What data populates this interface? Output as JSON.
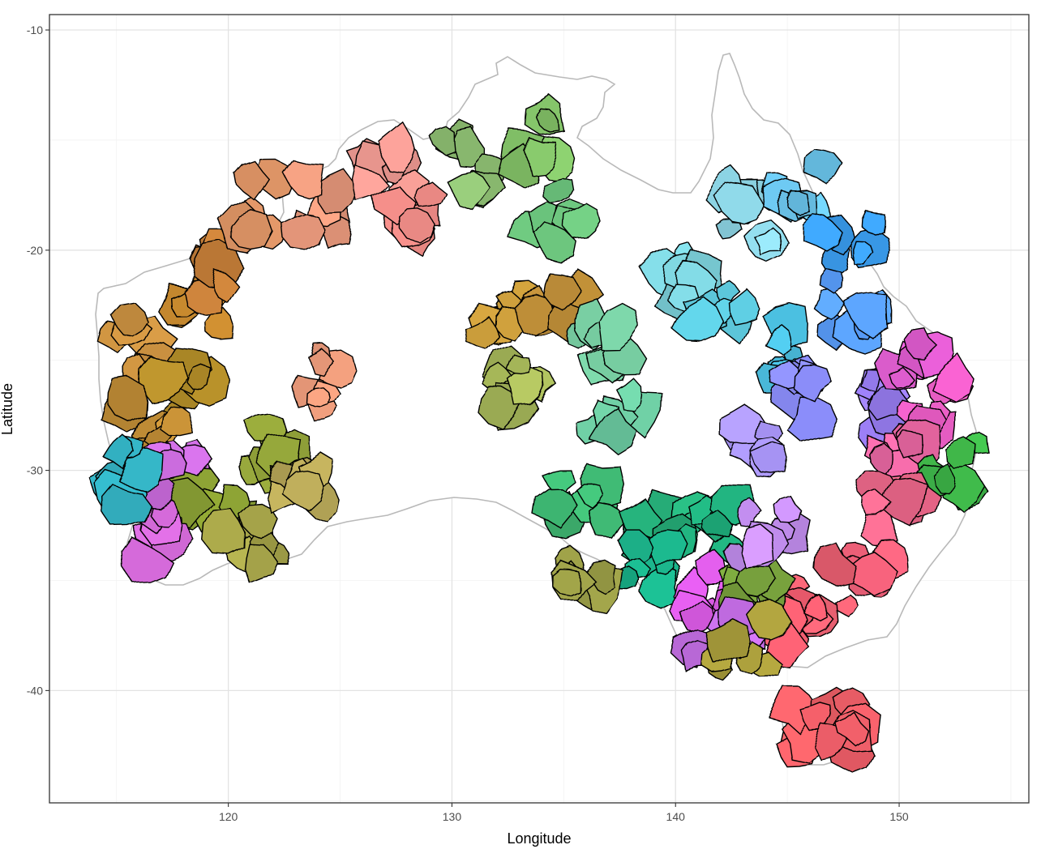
{
  "chart_data": {
    "type": "map",
    "xlabel": "Longitude",
    "ylabel": "Latitude",
    "xlim": [
      112,
      155.8
    ],
    "ylim": [
      -45.1,
      -9.3
    ],
    "x_ticks": [
      120,
      130,
      140,
      150
    ],
    "y_ticks": [
      -10,
      -20,
      -30,
      -40
    ],
    "x_tick_labels": [
      "120",
      "130",
      "140",
      "150"
    ],
    "y_tick_labels": [
      "-10",
      "-20",
      "-30",
      "-40"
    ],
    "grid": true,
    "legend": "none",
    "colors": {
      "panel_border": "#333333",
      "grid_major": "#e3e3e3",
      "grid_minor": "#f2f2f2",
      "coastline": "#b9b9b9",
      "region_outline": "#000000"
    },
    "regions": [
      {
        "lon": 118.5,
        "lat": -22.5,
        "color": "#c88a2e"
      },
      {
        "lon": 116.0,
        "lat": -24.5,
        "color": "#c99040"
      },
      {
        "lon": 118.0,
        "lat": -26.5,
        "color": "#b48e2a"
      },
      {
        "lon": 116.5,
        "lat": -28.0,
        "color": "#c28e36"
      },
      {
        "lon": 119.5,
        "lat": -21.0,
        "color": "#c9813a"
      },
      {
        "lon": 121.5,
        "lat": -29.0,
        "color": "#93a43a"
      },
      {
        "lon": 119.0,
        "lat": -31.0,
        "color": "#8ea434"
      },
      {
        "lon": 116.5,
        "lat": -33.0,
        "color": "#d66bdb"
      },
      {
        "lon": 117.5,
        "lat": -30.5,
        "color": "#cc6ddf"
      },
      {
        "lon": 116.0,
        "lat": -30.3,
        "color": "#33b3c4"
      },
      {
        "lon": 121.0,
        "lat": -33.5,
        "color": "#a8a64a"
      },
      {
        "lon": 123.5,
        "lat": -31.2,
        "color": "#b8a858"
      },
      {
        "lon": 121.5,
        "lat": -18.0,
        "color": "#e79a6a"
      },
      {
        "lon": 124.5,
        "lat": -18.0,
        "color": "#ea9a7d"
      },
      {
        "lon": 127.0,
        "lat": -16.5,
        "color": "#ef9a92"
      },
      {
        "lon": 128.0,
        "lat": -18.5,
        "color": "#ec8a85"
      },
      {
        "lon": 124.5,
        "lat": -26.0,
        "color": "#ea9a7a"
      },
      {
        "lon": 130.5,
        "lat": -16.0,
        "color": "#92c476"
      },
      {
        "lon": 133.5,
        "lat": -15.0,
        "color": "#86c66a"
      },
      {
        "lon": 135.0,
        "lat": -18.5,
        "color": "#6cc47d"
      },
      {
        "lon": 132.5,
        "lat": -23.5,
        "color": "#c79a3a"
      },
      {
        "lon": 134.5,
        "lat": -23.0,
        "color": "#c4923a"
      },
      {
        "lon": 133.0,
        "lat": -26.5,
        "color": "#a7b85a"
      },
      {
        "lon": 136.5,
        "lat": -24.5,
        "color": "#74c79d"
      },
      {
        "lon": 137.5,
        "lat": -27.5,
        "color": "#6fcfa5"
      },
      {
        "lon": 136.0,
        "lat": -31.0,
        "color": "#3fb873"
      },
      {
        "lon": 139.5,
        "lat": -32.5,
        "color": "#27b07a"
      },
      {
        "lon": 141.5,
        "lat": -32.5,
        "color": "#22b07d"
      },
      {
        "lon": 138.5,
        "lat": -34.0,
        "color": "#1bb38a"
      },
      {
        "lon": 136.0,
        "lat": -34.5,
        "color": "#a1a44a"
      },
      {
        "lon": 140.5,
        "lat": -21.0,
        "color": "#7dd2dc"
      },
      {
        "lon": 142.0,
        "lat": -23.0,
        "color": "#5cc8dc"
      },
      {
        "lon": 144.5,
        "lat": -24.5,
        "color": "#4cbfe0"
      },
      {
        "lon": 143.5,
        "lat": -18.5,
        "color": "#8fd8e8"
      },
      {
        "lon": 145.5,
        "lat": -17.0,
        "color": "#6cc7ef"
      },
      {
        "lon": 147.5,
        "lat": -19.5,
        "color": "#3b9ef0"
      },
      {
        "lon": 148.0,
        "lat": -22.5,
        "color": "#5aa0ff"
      },
      {
        "lon": 146.0,
        "lat": -26.5,
        "color": "#8a8cf8"
      },
      {
        "lon": 148.5,
        "lat": -27.0,
        "color": "#9a7ef4"
      },
      {
        "lon": 144.0,
        "lat": -28.5,
        "color": "#a895f7"
      },
      {
        "lon": 150.5,
        "lat": -25.0,
        "color": "#e55fd5"
      },
      {
        "lon": 151.5,
        "lat": -27.0,
        "color": "#eb5ec6"
      },
      {
        "lon": 150.0,
        "lat": -29.5,
        "color": "#f06aa7"
      },
      {
        "lon": 152.5,
        "lat": -30.0,
        "color": "#3fb84a"
      },
      {
        "lon": 149.5,
        "lat": -32.0,
        "color": "#f36b8e"
      },
      {
        "lon": 148.5,
        "lat": -34.0,
        "color": "#f2617a"
      },
      {
        "lon": 146.5,
        "lat": -35.5,
        "color": "#f06274"
      },
      {
        "lon": 145.5,
        "lat": -37.0,
        "color": "#ef5c6e"
      },
      {
        "lon": 141.5,
        "lat": -35.5,
        "color": "#d659e0"
      },
      {
        "lon": 143.5,
        "lat": -35.2,
        "color": "#79a33d"
      },
      {
        "lon": 142.0,
        "lat": -37.5,
        "color": "#c56ee5"
      },
      {
        "lon": 144.0,
        "lat": -33.0,
        "color": "#c690f3"
      },
      {
        "lon": 143.0,
        "lat": -37.8,
        "color": "#a69a3a"
      },
      {
        "lon": 146.5,
        "lat": -42.0,
        "color": "#f05f66"
      },
      {
        "lon": 147.7,
        "lat": -41.8,
        "color": "#f2606a"
      }
    ]
  }
}
